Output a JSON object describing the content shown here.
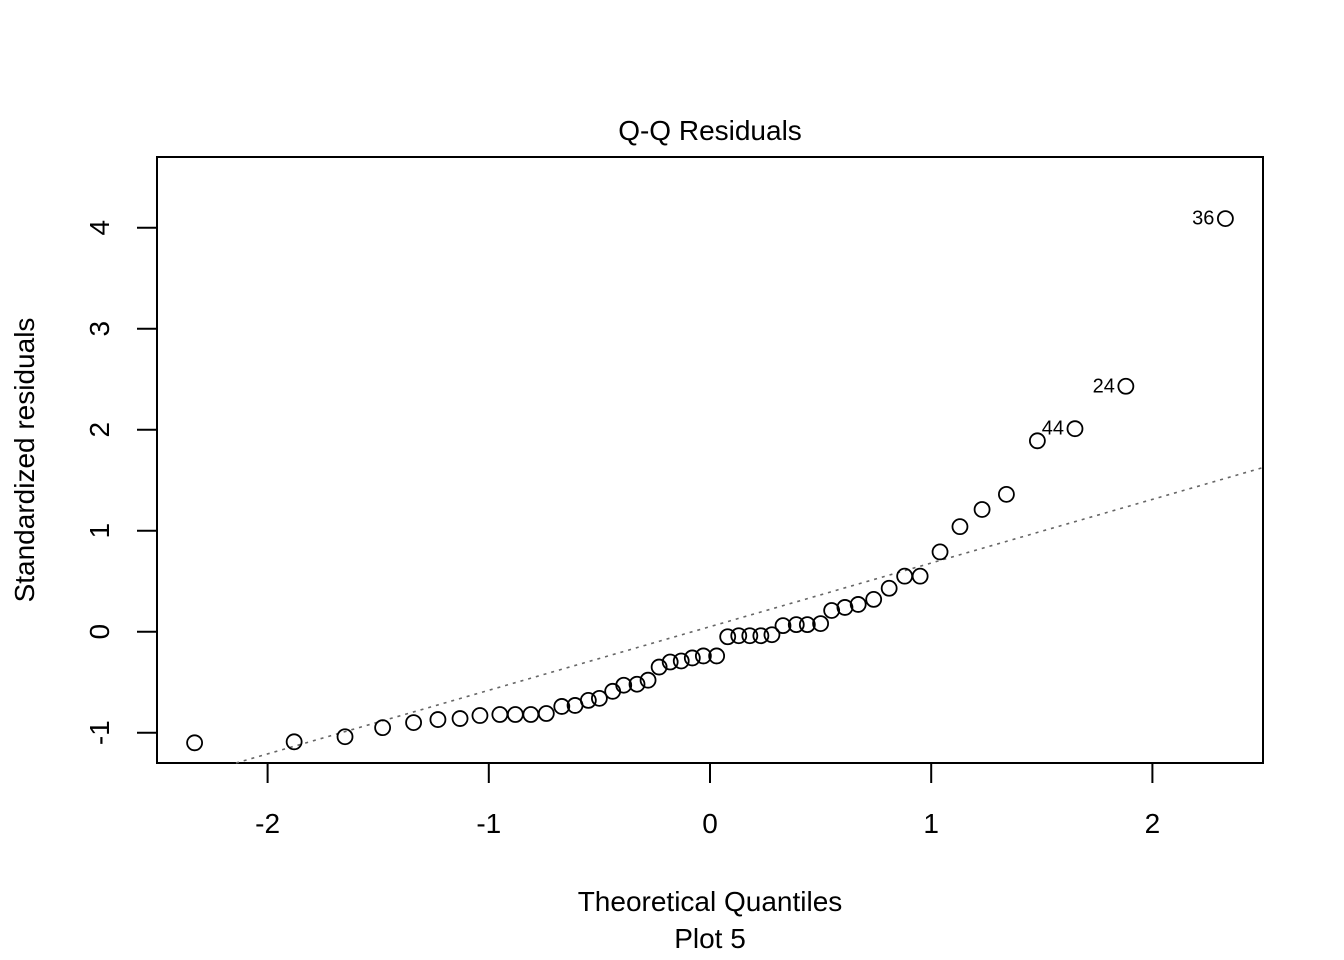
{
  "chart_data": {
    "type": "scatter",
    "title": "Q-Q Residuals",
    "xlabel": "Theoretical Quantiles",
    "sub_label": "Plot 5",
    "ylabel": "Standardized residuals",
    "xlim": [
      -2.5,
      2.5
    ],
    "ylim": [
      -1.3,
      4.7
    ],
    "x_ticks": [
      -2,
      -1,
      0,
      1,
      2
    ],
    "y_ticks": [
      -1,
      0,
      1,
      2,
      3,
      4
    ],
    "grid": false,
    "reference_line": {
      "style": "dotted",
      "color": "#666666",
      "intercept": 0.05,
      "slope": 0.63
    },
    "points": [
      {
        "x": -2.33,
        "y": -1.1
      },
      {
        "x": -1.88,
        "y": -1.09
      },
      {
        "x": -1.65,
        "y": -1.04
      },
      {
        "x": -1.48,
        "y": -0.95
      },
      {
        "x": -1.34,
        "y": -0.9
      },
      {
        "x": -1.23,
        "y": -0.87
      },
      {
        "x": -1.13,
        "y": -0.86
      },
      {
        "x": -1.04,
        "y": -0.83
      },
      {
        "x": -0.95,
        "y": -0.82
      },
      {
        "x": -0.88,
        "y": -0.82
      },
      {
        "x": -0.81,
        "y": -0.82
      },
      {
        "x": -0.74,
        "y": -0.81
      },
      {
        "x": -0.67,
        "y": -0.74
      },
      {
        "x": -0.61,
        "y": -0.73
      },
      {
        "x": -0.55,
        "y": -0.68
      },
      {
        "x": -0.5,
        "y": -0.66
      },
      {
        "x": -0.44,
        "y": -0.59
      },
      {
        "x": -0.39,
        "y": -0.53
      },
      {
        "x": -0.33,
        "y": -0.52
      },
      {
        "x": -0.28,
        "y": -0.48
      },
      {
        "x": -0.23,
        "y": -0.35
      },
      {
        "x": -0.18,
        "y": -0.3
      },
      {
        "x": -0.13,
        "y": -0.29
      },
      {
        "x": -0.08,
        "y": -0.26
      },
      {
        "x": -0.03,
        "y": -0.24
      },
      {
        "x": 0.03,
        "y": -0.24
      },
      {
        "x": 0.08,
        "y": -0.05
      },
      {
        "x": 0.13,
        "y": -0.04
      },
      {
        "x": 0.18,
        "y": -0.04
      },
      {
        "x": 0.23,
        "y": -0.04
      },
      {
        "x": 0.28,
        "y": -0.03
      },
      {
        "x": 0.33,
        "y": 0.06
      },
      {
        "x": 0.39,
        "y": 0.07
      },
      {
        "x": 0.44,
        "y": 0.07
      },
      {
        "x": 0.5,
        "y": 0.08
      },
      {
        "x": 0.55,
        "y": 0.21
      },
      {
        "x": 0.61,
        "y": 0.24
      },
      {
        "x": 0.67,
        "y": 0.27
      },
      {
        "x": 0.74,
        "y": 0.32
      },
      {
        "x": 0.81,
        "y": 0.43
      },
      {
        "x": 0.88,
        "y": 0.55
      },
      {
        "x": 0.95,
        "y": 0.55
      },
      {
        "x": 1.04,
        "y": 0.79
      },
      {
        "x": 1.13,
        "y": 1.04
      },
      {
        "x": 1.23,
        "y": 1.21
      },
      {
        "x": 1.34,
        "y": 1.36
      },
      {
        "x": 1.48,
        "y": 1.89
      },
      {
        "x": 1.65,
        "y": 2.01,
        "label": "44"
      },
      {
        "x": 1.88,
        "y": 2.43,
        "label": "24"
      },
      {
        "x": 2.33,
        "y": 4.09,
        "label": "36"
      }
    ]
  }
}
